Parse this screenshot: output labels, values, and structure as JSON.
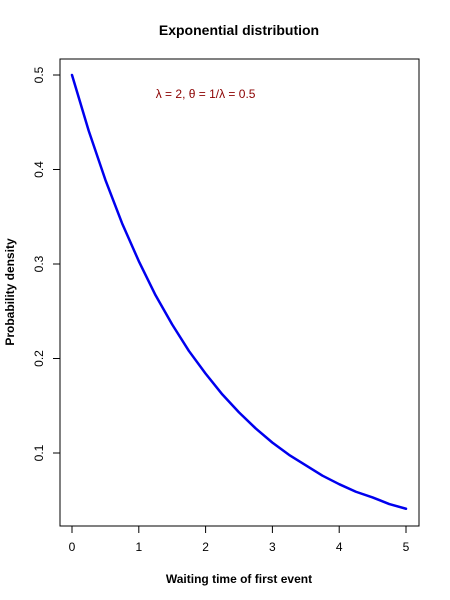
{
  "chart_data": {
    "type": "line",
    "title": "Exponential distribution",
    "xlabel": "Waiting time of first event",
    "ylabel": "Probability density",
    "xlim": [
      0,
      5
    ],
    "ylim": [
      0.04,
      0.5
    ],
    "xticks": [
      0,
      1,
      2,
      3,
      4,
      5
    ],
    "yticks": [
      0.1,
      0.2,
      0.3,
      0.4,
      0.5
    ],
    "xtick_labels": [
      "0",
      "1",
      "2",
      "3",
      "4",
      "5"
    ],
    "ytick_labels": [
      "0.1",
      "0.2",
      "0.3",
      "0.4",
      "0.5"
    ],
    "grid": false,
    "series": [
      {
        "color": "#0000ee",
        "x": [
          0,
          0.25,
          0.5,
          0.75,
          1,
          1.25,
          1.5,
          1.75,
          2,
          2.25,
          2.5,
          2.75,
          3,
          3.25,
          3.5,
          3.75,
          4,
          4.25,
          4.5,
          4.75,
          5
        ],
        "y": [
          0.5,
          0.441,
          0.389,
          0.343,
          0.303,
          0.267,
          0.236,
          0.208,
          0.184,
          0.162,
          0.143,
          0.126,
          0.111,
          0.098,
          0.087,
          0.076,
          0.067,
          0.059,
          0.053,
          0.046,
          0.041
        ]
      }
    ],
    "annotation": {
      "text": "λ = 2,    θ = 1/λ = 0.5",
      "color": "#8b0000",
      "x": 2,
      "y": 0.48
    }
  }
}
